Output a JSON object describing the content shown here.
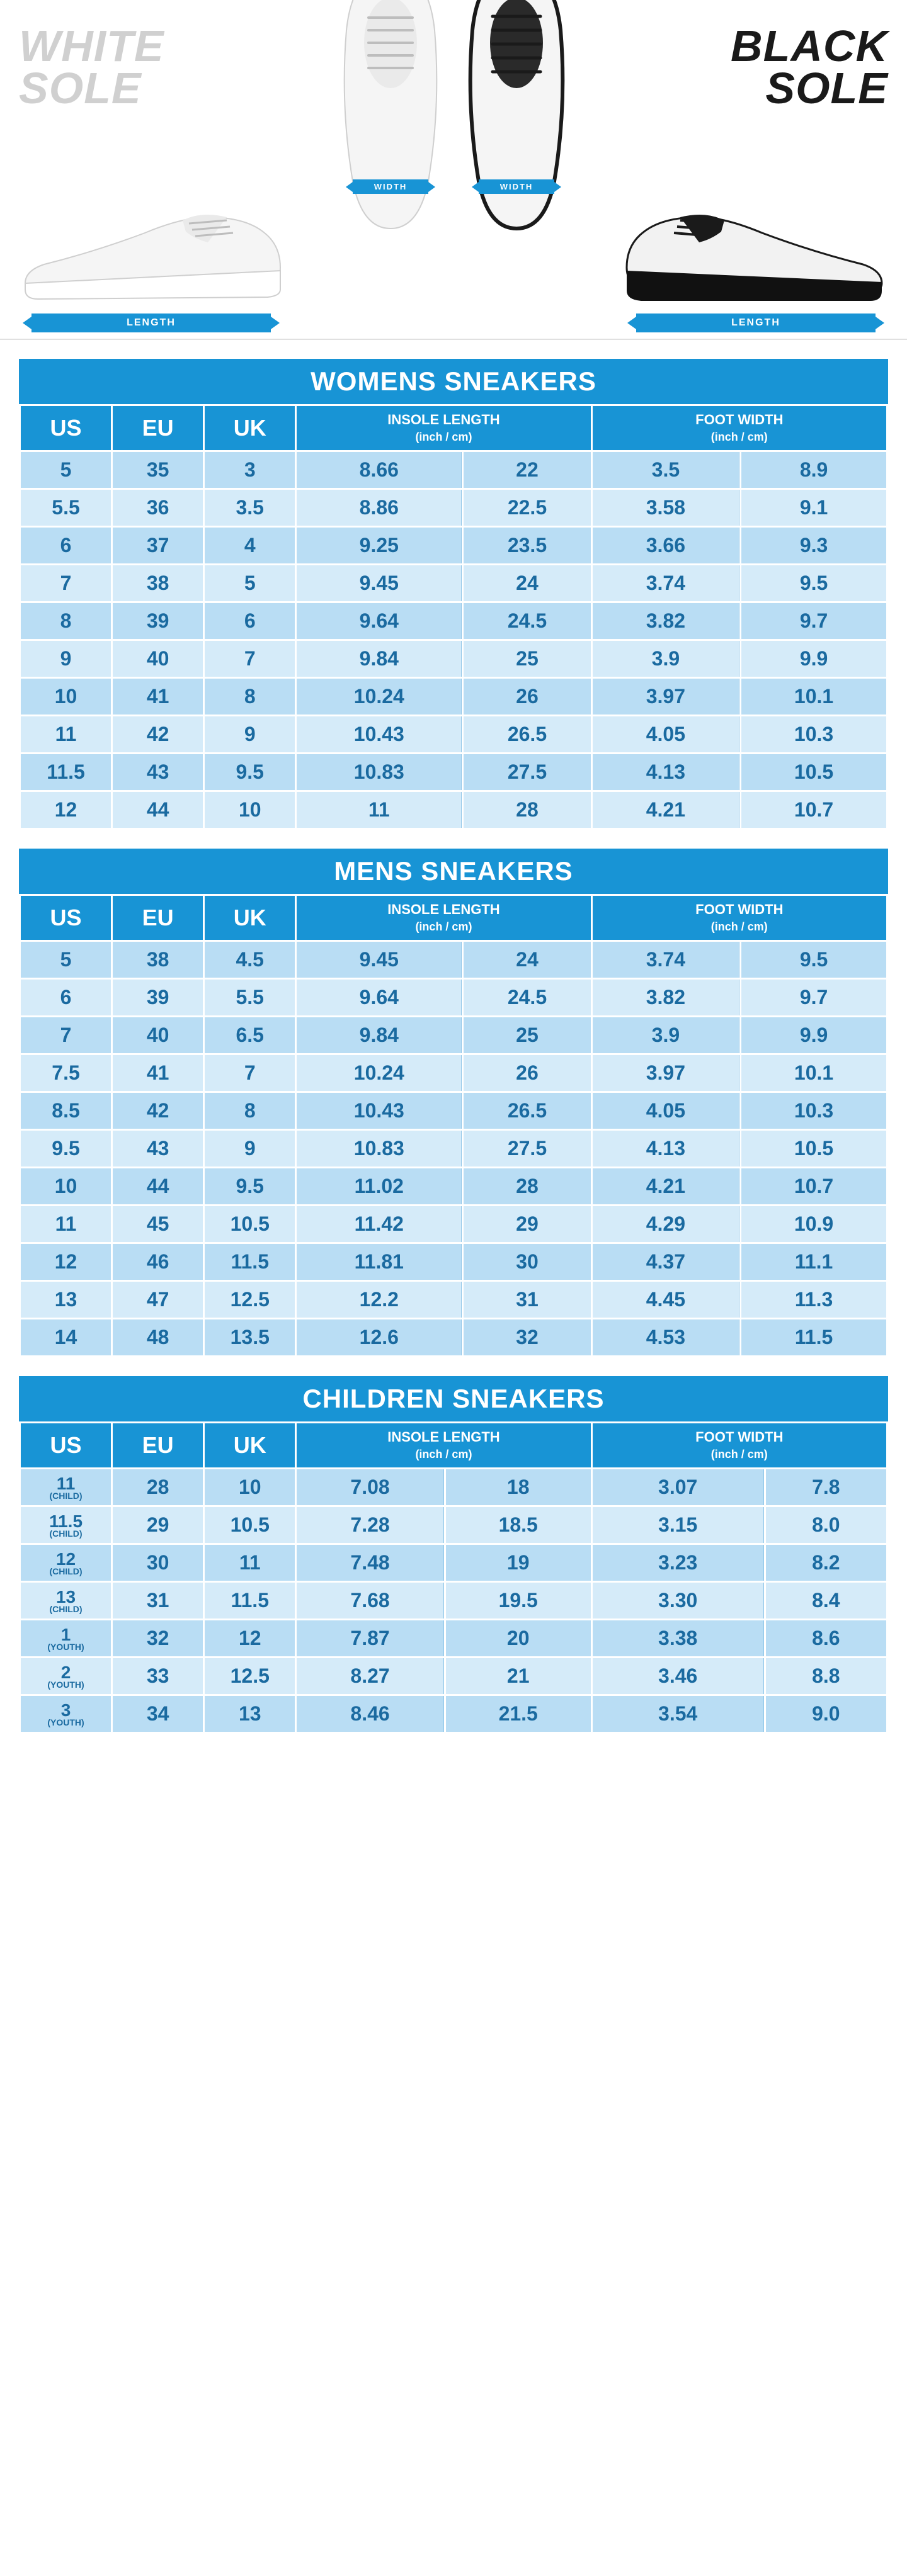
{
  "colors": {
    "brand_blue": "#1894d5",
    "row_odd": "#b9ddf4",
    "row_even": "#d5ebf9",
    "cell_text": "#1a6aa0",
    "white_sole_label": "#d0d0d0",
    "black_sole_label": "#1a1a1a",
    "background": "#ffffff"
  },
  "typography": {
    "title_fontsize": 42,
    "th_size_fontsize": 36,
    "th_group_fontsize": 22,
    "cell_fontsize": 32,
    "sole_label_fontsize": 70
  },
  "hero": {
    "white_sole": {
      "line1": "WHITE",
      "line2": "SOLE"
    },
    "black_sole": {
      "line1": "BLACK",
      "line2": "SOLE"
    },
    "length_label": "LENGTH",
    "width_label": "WIDTH"
  },
  "headers": {
    "us": "US",
    "eu": "EU",
    "uk": "UK",
    "insole": "INSOLE LENGTH",
    "foot": "FOOT WIDTH",
    "unit": "(inch / cm)"
  },
  "tables": [
    {
      "title": "WOMENS SNEAKERS",
      "child_labels": false,
      "rows": [
        {
          "us": "5",
          "eu": "35",
          "uk": "3",
          "in_in": "8.66",
          "in_cm": "22",
          "fw_in": "3.5",
          "fw_cm": "8.9"
        },
        {
          "us": "5.5",
          "eu": "36",
          "uk": "3.5",
          "in_in": "8.86",
          "in_cm": "22.5",
          "fw_in": "3.58",
          "fw_cm": "9.1"
        },
        {
          "us": "6",
          "eu": "37",
          "uk": "4",
          "in_in": "9.25",
          "in_cm": "23.5",
          "fw_in": "3.66",
          "fw_cm": "9.3"
        },
        {
          "us": "7",
          "eu": "38",
          "uk": "5",
          "in_in": "9.45",
          "in_cm": "24",
          "fw_in": "3.74",
          "fw_cm": "9.5"
        },
        {
          "us": "8",
          "eu": "39",
          "uk": "6",
          "in_in": "9.64",
          "in_cm": "24.5",
          "fw_in": "3.82",
          "fw_cm": "9.7"
        },
        {
          "us": "9",
          "eu": "40",
          "uk": "7",
          "in_in": "9.84",
          "in_cm": "25",
          "fw_in": "3.9",
          "fw_cm": "9.9"
        },
        {
          "us": "10",
          "eu": "41",
          "uk": "8",
          "in_in": "10.24",
          "in_cm": "26",
          "fw_in": "3.97",
          "fw_cm": "10.1"
        },
        {
          "us": "11",
          "eu": "42",
          "uk": "9",
          "in_in": "10.43",
          "in_cm": "26.5",
          "fw_in": "4.05",
          "fw_cm": "10.3"
        },
        {
          "us": "11.5",
          "eu": "43",
          "uk": "9.5",
          "in_in": "10.83",
          "in_cm": "27.5",
          "fw_in": "4.13",
          "fw_cm": "10.5"
        },
        {
          "us": "12",
          "eu": "44",
          "uk": "10",
          "in_in": "11",
          "in_cm": "28",
          "fw_in": "4.21",
          "fw_cm": "10.7"
        }
      ]
    },
    {
      "title": "MENS SNEAKERS",
      "child_labels": false,
      "rows": [
        {
          "us": "5",
          "eu": "38",
          "uk": "4.5",
          "in_in": "9.45",
          "in_cm": "24",
          "fw_in": "3.74",
          "fw_cm": "9.5"
        },
        {
          "us": "6",
          "eu": "39",
          "uk": "5.5",
          "in_in": "9.64",
          "in_cm": "24.5",
          "fw_in": "3.82",
          "fw_cm": "9.7"
        },
        {
          "us": "7",
          "eu": "40",
          "uk": "6.5",
          "in_in": "9.84",
          "in_cm": "25",
          "fw_in": "3.9",
          "fw_cm": "9.9"
        },
        {
          "us": "7.5",
          "eu": "41",
          "uk": "7",
          "in_in": "10.24",
          "in_cm": "26",
          "fw_in": "3.97",
          "fw_cm": "10.1"
        },
        {
          "us": "8.5",
          "eu": "42",
          "uk": "8",
          "in_in": "10.43",
          "in_cm": "26.5",
          "fw_in": "4.05",
          "fw_cm": "10.3"
        },
        {
          "us": "9.5",
          "eu": "43",
          "uk": "9",
          "in_in": "10.83",
          "in_cm": "27.5",
          "fw_in": "4.13",
          "fw_cm": "10.5"
        },
        {
          "us": "10",
          "eu": "44",
          "uk": "9.5",
          "in_in": "11.02",
          "in_cm": "28",
          "fw_in": "4.21",
          "fw_cm": "10.7"
        },
        {
          "us": "11",
          "eu": "45",
          "uk": "10.5",
          "in_in": "11.42",
          "in_cm": "29",
          "fw_in": "4.29",
          "fw_cm": "10.9"
        },
        {
          "us": "12",
          "eu": "46",
          "uk": "11.5",
          "in_in": "11.81",
          "in_cm": "30",
          "fw_in": "4.37",
          "fw_cm": "11.1"
        },
        {
          "us": "13",
          "eu": "47",
          "uk": "12.5",
          "in_in": "12.2",
          "in_cm": "31",
          "fw_in": "4.45",
          "fw_cm": "11.3"
        },
        {
          "us": "14",
          "eu": "48",
          "uk": "13.5",
          "in_in": "12.6",
          "in_cm": "32",
          "fw_in": "4.53",
          "fw_cm": "11.5"
        }
      ]
    },
    {
      "title": "CHILDREN SNEAKERS",
      "child_labels": true,
      "rows": [
        {
          "us": "11",
          "us_sub": "(CHILD)",
          "eu": "28",
          "uk": "10",
          "in_in": "7.08",
          "in_cm": "18",
          "fw_in": "3.07",
          "fw_cm": "7.8"
        },
        {
          "us": "11.5",
          "us_sub": "(CHILD)",
          "eu": "29",
          "uk": "10.5",
          "in_in": "7.28",
          "in_cm": "18.5",
          "fw_in": "3.15",
          "fw_cm": "8.0"
        },
        {
          "us": "12",
          "us_sub": "(CHILD)",
          "eu": "30",
          "uk": "11",
          "in_in": "7.48",
          "in_cm": "19",
          "fw_in": "3.23",
          "fw_cm": "8.2"
        },
        {
          "us": "13",
          "us_sub": "(CHILD)",
          "eu": "31",
          "uk": "11.5",
          "in_in": "7.68",
          "in_cm": "19.5",
          "fw_in": "3.30",
          "fw_cm": "8.4"
        },
        {
          "us": "1",
          "us_sub": "(YOUTH)",
          "eu": "32",
          "uk": "12",
          "in_in": "7.87",
          "in_cm": "20",
          "fw_in": "3.38",
          "fw_cm": "8.6"
        },
        {
          "us": "2",
          "us_sub": "(YOUTH)",
          "eu": "33",
          "uk": "12.5",
          "in_in": "8.27",
          "in_cm": "21",
          "fw_in": "3.46",
          "fw_cm": "8.8"
        },
        {
          "us": "3",
          "us_sub": "(YOUTH)",
          "eu": "34",
          "uk": "13",
          "in_in": "8.46",
          "in_cm": "21.5",
          "fw_in": "3.54",
          "fw_cm": "9.0"
        }
      ]
    }
  ]
}
